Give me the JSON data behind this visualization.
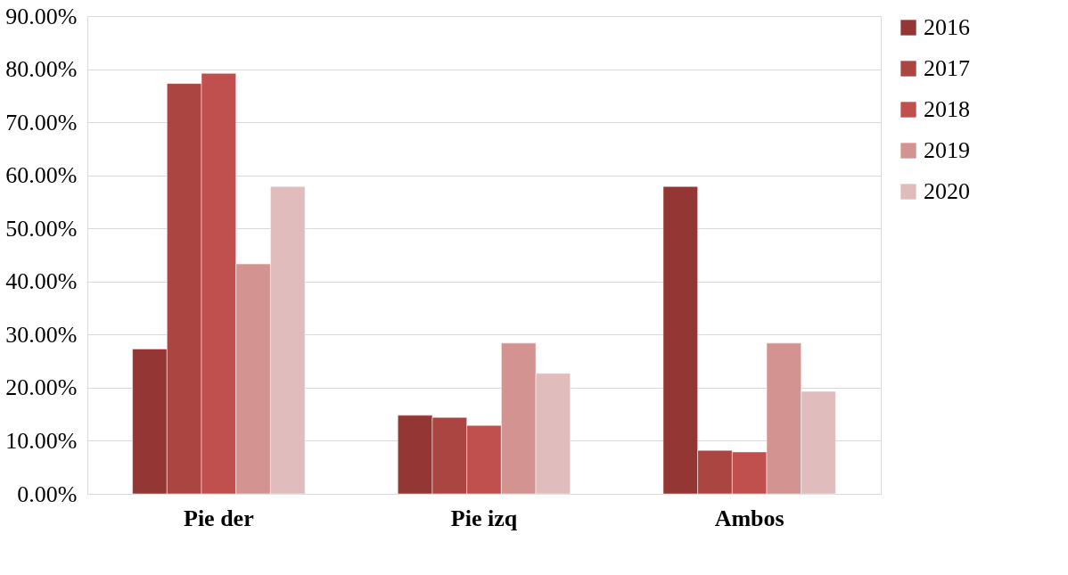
{
  "chart_data": {
    "type": "bar",
    "categories": [
      "Pie der",
      "Pie izq",
      "Ambos"
    ],
    "series": [
      {
        "name": "2016",
        "color": "#943634",
        "values": [
          27.3,
          14.8,
          57.9
        ]
      },
      {
        "name": "2017",
        "color": "#ab4542",
        "values": [
          77.3,
          14.4,
          8.2
        ]
      },
      {
        "name": "2018",
        "color": "#c0504d",
        "values": [
          79.2,
          12.9,
          7.9
        ]
      },
      {
        "name": "2019",
        "color": "#d39391",
        "values": [
          43.3,
          28.4,
          28.4
        ]
      },
      {
        "name": "2020",
        "color": "#e0bcbc",
        "values": [
          57.9,
          22.7,
          19.3
        ]
      }
    ],
    "ylim": [
      0,
      90
    ],
    "yticks": [
      {
        "value": 0,
        "label": "0.00%"
      },
      {
        "value": 10,
        "label": "10.00%"
      },
      {
        "value": 20,
        "label": "20.00%"
      },
      {
        "value": 30,
        "label": "30.00%"
      },
      {
        "value": 40,
        "label": "40.00%"
      },
      {
        "value": 50,
        "label": "50.00%"
      },
      {
        "value": 60,
        "label": "60.00%"
      },
      {
        "value": 70,
        "label": "70.00%"
      },
      {
        "value": 80,
        "label": "80.00%"
      },
      {
        "value": 90,
        "label": "90.00%"
      }
    ],
    "grid": "y",
    "legend": "right"
  }
}
